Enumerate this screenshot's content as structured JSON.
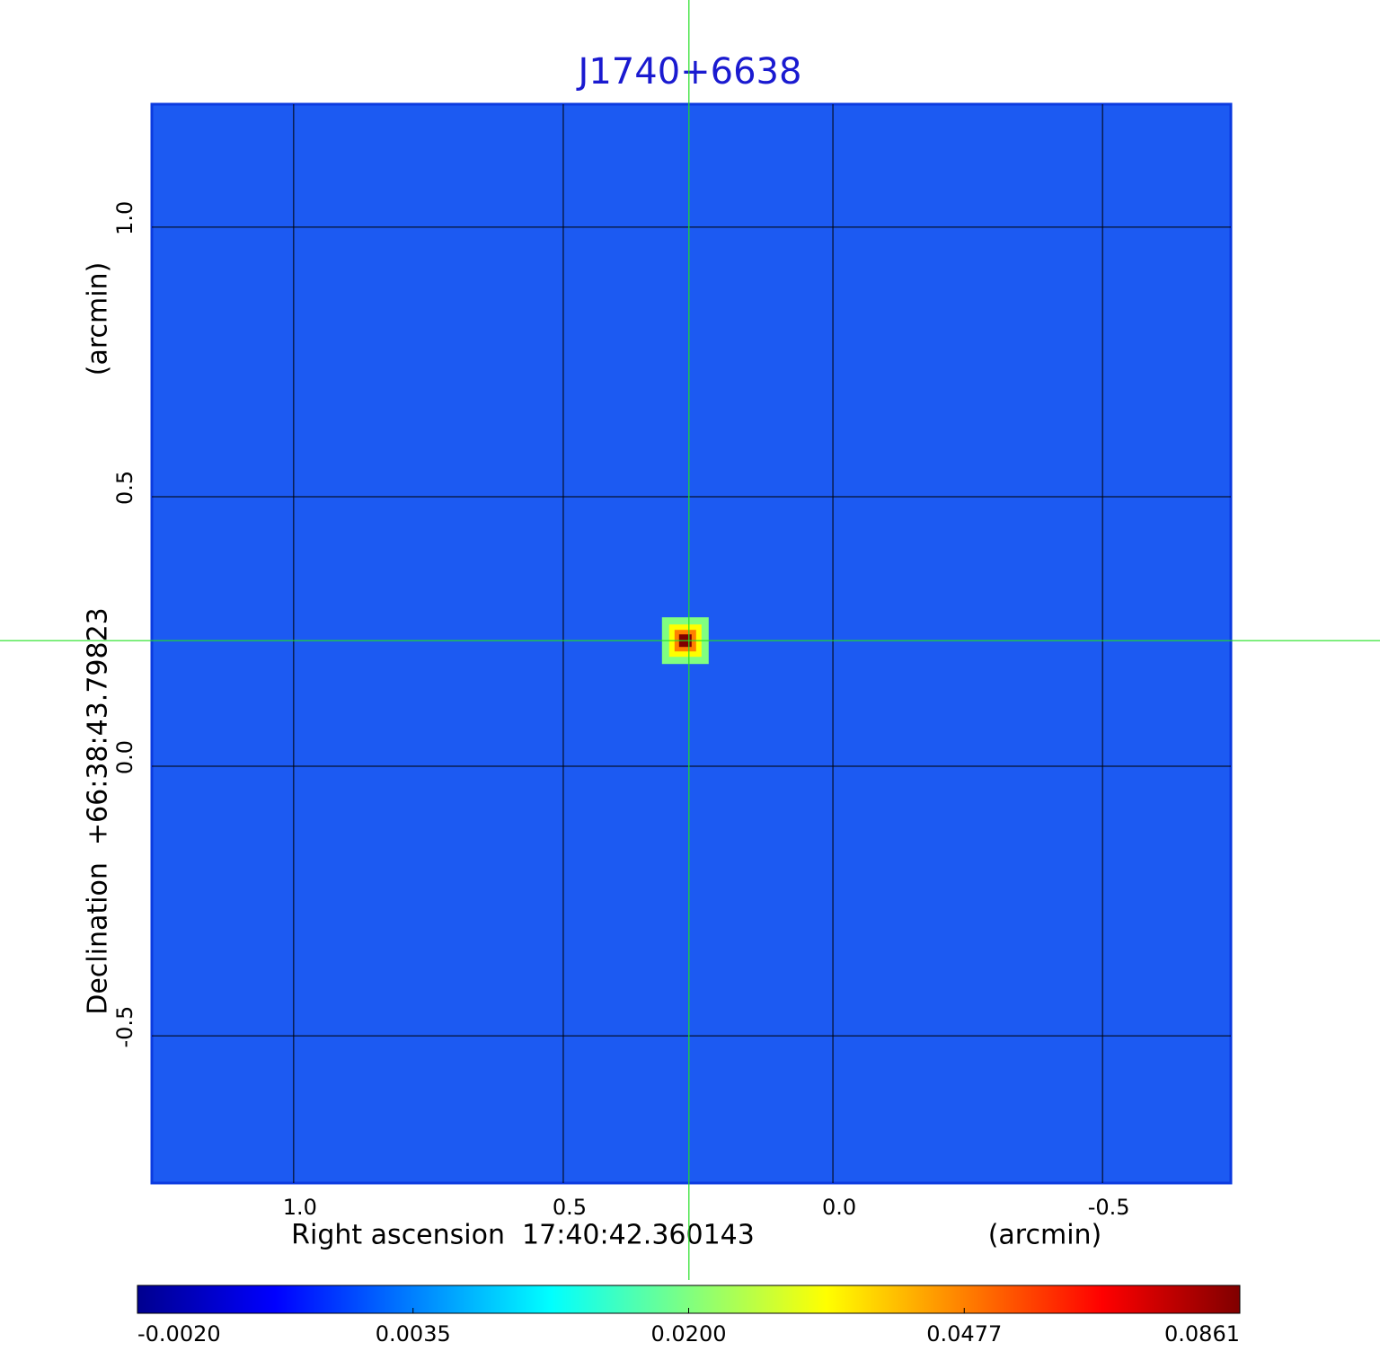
{
  "chart_data": {
    "type": "image",
    "title": "J1740+6638",
    "x_label": "Right ascension  17:40:42.360143",
    "x_unit": "(arcmin)",
    "y_label": "Declination  +66:38:43.79823",
    "y_unit": "(arcmin)",
    "xlim": [
      1.263,
      -0.738
    ],
    "ylim": [
      -0.773,
      1.228
    ],
    "xticks": [
      {
        "value": 1,
        "label": "1.0"
      },
      0.5,
      {
        "value": 0,
        "label": "0.0"
      },
      -0.5
    ],
    "yticks": [
      {
        "value": 1,
        "label": "1.0"
      },
      0.5,
      {
        "value": 0,
        "label": "0.0"
      },
      -0.5
    ],
    "grid": true,
    "background_color": "#1c5af2",
    "marker_x": 0.267,
    "marker_y": 0.233,
    "marker_color": "#22e022",
    "colorbar_lim": [
      -0.002,
      0.0861
    ],
    "colorbar_ticks": [
      {
        "value": -0.002,
        "label": "-0.0020"
      },
      {
        "value": 0.0035,
        "label": "0.0035"
      },
      {
        "value": 0.02,
        "label": "0.0200"
      },
      {
        "value": 0.0477,
        "label": "0.0477"
      },
      {
        "value": 0.0861,
        "label": "0.0861"
      }
    ],
    "colormap": [
      "#00008f",
      "#0000ff",
      "#0080ff",
      "#00ffff",
      "#80ff80",
      "#ffff00",
      "#ff8000",
      "#ff0000",
      "#800000"
    ]
  }
}
